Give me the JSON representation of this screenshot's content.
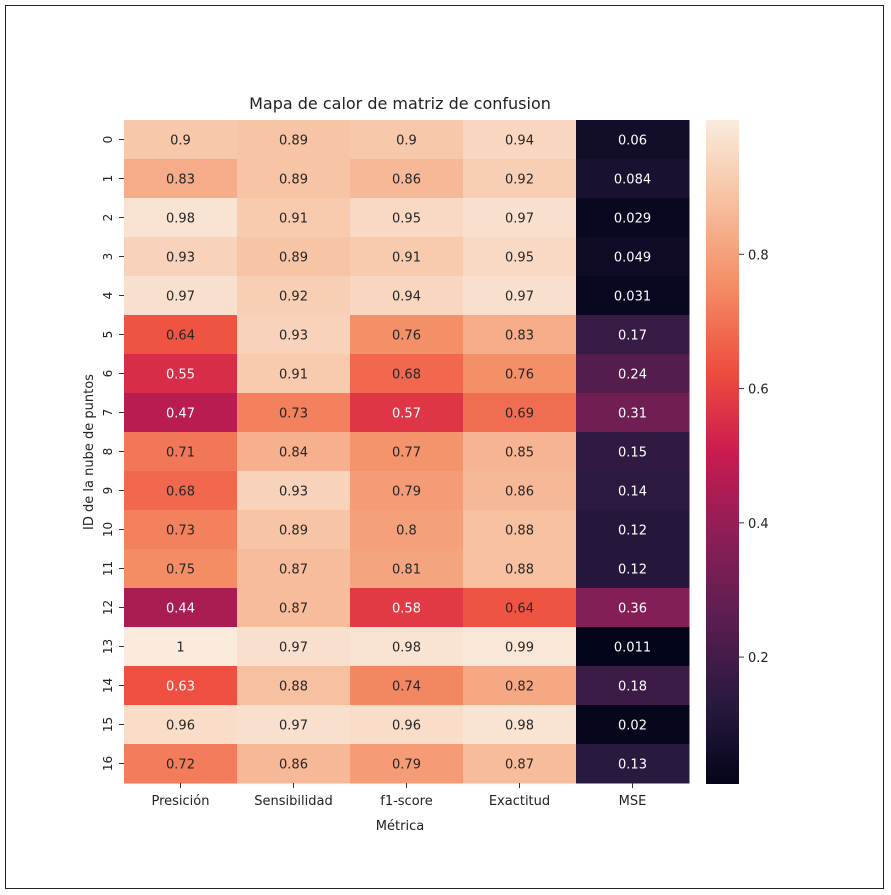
{
  "chart_data": {
    "type": "heatmap",
    "title": "Mapa de calor de matriz de confusion",
    "xlabel": "Métrica",
    "ylabel": "ID de la nube de puntos",
    "columns": [
      "Presición",
      "Sensibilidad",
      "f1-score",
      "Exactitud",
      "MSE"
    ],
    "rows": [
      "0",
      "1",
      "2",
      "3",
      "4",
      "5",
      "6",
      "7",
      "8",
      "9",
      "10",
      "11",
      "12",
      "13",
      "14",
      "15",
      "16"
    ],
    "values": [
      [
        0.9,
        0.89,
        0.9,
        0.94,
        0.06
      ],
      [
        0.83,
        0.89,
        0.86,
        0.92,
        0.084
      ],
      [
        0.98,
        0.91,
        0.95,
        0.97,
        0.029
      ],
      [
        0.93,
        0.89,
        0.91,
        0.95,
        0.049
      ],
      [
        0.97,
        0.92,
        0.94,
        0.97,
        0.031
      ],
      [
        0.64,
        0.93,
        0.76,
        0.83,
        0.17
      ],
      [
        0.55,
        0.91,
        0.68,
        0.76,
        0.24
      ],
      [
        0.47,
        0.73,
        0.57,
        0.69,
        0.31
      ],
      [
        0.71,
        0.84,
        0.77,
        0.85,
        0.15
      ],
      [
        0.68,
        0.93,
        0.79,
        0.86,
        0.14
      ],
      [
        0.73,
        0.89,
        0.8,
        0.88,
        0.12
      ],
      [
        0.75,
        0.87,
        0.81,
        0.88,
        0.12
      ],
      [
        0.44,
        0.87,
        0.58,
        0.64,
        0.36
      ],
      [
        1,
        0.97,
        0.98,
        0.99,
        0.011
      ],
      [
        0.63,
        0.88,
        0.74,
        0.82,
        0.18
      ],
      [
        0.96,
        0.97,
        0.96,
        0.98,
        0.02
      ],
      [
        0.72,
        0.86,
        0.79,
        0.87,
        0.13
      ]
    ],
    "labels": [
      [
        "0.9",
        "0.89",
        "0.9",
        "0.94",
        "0.06"
      ],
      [
        "0.83",
        "0.89",
        "0.86",
        "0.92",
        "0.084"
      ],
      [
        "0.98",
        "0.91",
        "0.95",
        "0.97",
        "0.029"
      ],
      [
        "0.93",
        "0.89",
        "0.91",
        "0.95",
        "0.049"
      ],
      [
        "0.97",
        "0.92",
        "0.94",
        "0.97",
        "0.031"
      ],
      [
        "0.64",
        "0.93",
        "0.76",
        "0.83",
        "0.17"
      ],
      [
        "0.55",
        "0.91",
        "0.68",
        "0.76",
        "0.24"
      ],
      [
        "0.47",
        "0.73",
        "0.57",
        "0.69",
        "0.31"
      ],
      [
        "0.71",
        "0.84",
        "0.77",
        "0.85",
        "0.15"
      ],
      [
        "0.68",
        "0.93",
        "0.79",
        "0.86",
        "0.14"
      ],
      [
        "0.73",
        "0.89",
        "0.8",
        "0.88",
        "0.12"
      ],
      [
        "0.75",
        "0.87",
        "0.81",
        "0.88",
        "0.12"
      ],
      [
        "0.44",
        "0.87",
        "0.58",
        "0.64",
        "0.36"
      ],
      [
        "1",
        "0.97",
        "0.98",
        "0.99",
        "0.011"
      ],
      [
        "0.63",
        "0.88",
        "0.74",
        "0.82",
        "0.18"
      ],
      [
        "0.96",
        "0.97",
        "0.96",
        "0.98",
        "0.02"
      ],
      [
        "0.72",
        "0.86",
        "0.79",
        "0.87",
        "0.13"
      ]
    ],
    "colormap": "rocket",
    "colorbar": {
      "ticks": [
        0.2,
        0.4,
        0.6,
        0.8
      ],
      "range": [
        0.011,
        1
      ]
    },
    "grid": false,
    "legend": "colorbar-right"
  }
}
